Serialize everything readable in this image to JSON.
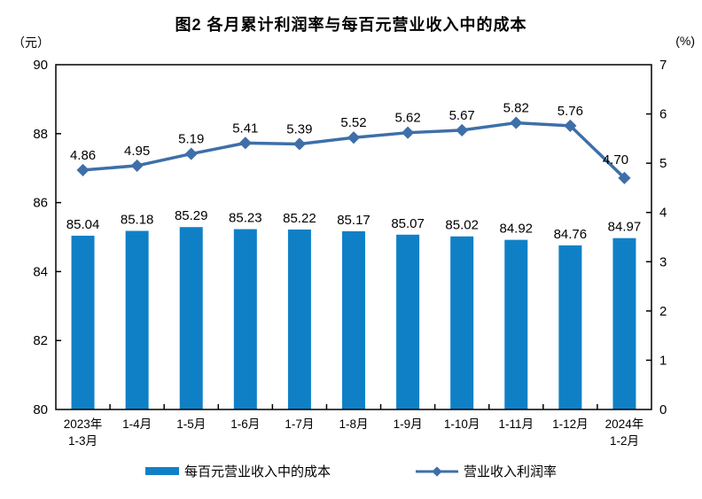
{
  "chart_data": {
    "type": "bar+line combo",
    "title": "图2 各月累计利润率与每百元营业收入中的成本",
    "categories": [
      "2023年\n1-3月",
      "1-4月",
      "1-5月",
      "1-6月",
      "1-7月",
      "1-8月",
      "1-9月",
      "1-10月",
      "1-11月",
      "1-12月",
      "2024年\n1-2月"
    ],
    "series": [
      {
        "name": "每百元营业收入中的成本",
        "type": "bar",
        "axis": "left",
        "color": "#1080C6",
        "values": [
          85.04,
          85.18,
          85.29,
          85.23,
          85.22,
          85.17,
          85.07,
          85.02,
          84.92,
          84.76,
          84.97
        ]
      },
      {
        "name": "营业收入利润率",
        "type": "line",
        "axis": "right",
        "color": "#3E6FA8",
        "values": [
          4.86,
          4.95,
          5.19,
          5.41,
          5.39,
          5.52,
          5.62,
          5.67,
          5.82,
          5.76,
          4.7
        ]
      }
    ],
    "left_axis": {
      "unit": "（元）",
      "min": 80,
      "max": 90,
      "tick_step": 2,
      "ticks": [
        80,
        82,
        84,
        86,
        88,
        90
      ]
    },
    "right_axis": {
      "unit": "(%)",
      "min": 0,
      "max": 7,
      "tick_step": 1,
      "ticks": [
        0,
        1,
        2,
        3,
        4,
        5,
        6,
        7
      ]
    },
    "grid": false,
    "legend_position": "bottom",
    "label_decimals": 2,
    "text_color": "#000000",
    "axis_color": "#000000"
  }
}
